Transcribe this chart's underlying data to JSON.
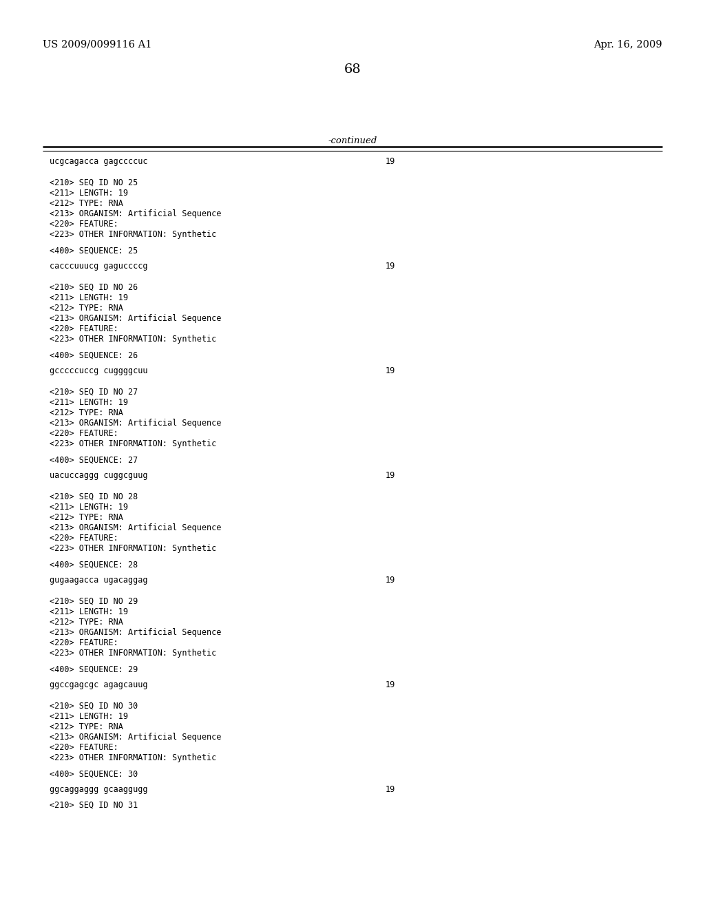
{
  "header_left": "US 2009/0099116 A1",
  "header_right": "Apr. 16, 2009",
  "page_number": "68",
  "continued_label": "-continued",
  "background_color": "#ffffff",
  "text_color": "#000000",
  "line_color": "#000000",
  "header_fontsize": 10.5,
  "body_fontsize": 9.5,
  "mono_fontsize": 8.5,
  "page_num_fontsize": 14,
  "lines": [
    {
      "text": "ucgcagacca gagccccuc",
      "type": "sequence",
      "right_num": "19"
    },
    {
      "text": "",
      "type": "blank"
    },
    {
      "text": "",
      "type": "blank"
    },
    {
      "text": "<210> SEQ ID NO 25",
      "type": "body"
    },
    {
      "text": "<211> LENGTH: 19",
      "type": "body"
    },
    {
      "text": "<212> TYPE: RNA",
      "type": "body"
    },
    {
      "text": "<213> ORGANISM: Artificial Sequence",
      "type": "body"
    },
    {
      "text": "<220> FEATURE:",
      "type": "body"
    },
    {
      "text": "<223> OTHER INFORMATION: Synthetic",
      "type": "body"
    },
    {
      "text": "",
      "type": "blank"
    },
    {
      "text": "<400> SEQUENCE: 25",
      "type": "body"
    },
    {
      "text": "",
      "type": "blank"
    },
    {
      "text": "cacccuuucg gaguccccg",
      "type": "sequence",
      "right_num": "19"
    },
    {
      "text": "",
      "type": "blank"
    },
    {
      "text": "",
      "type": "blank"
    },
    {
      "text": "<210> SEQ ID NO 26",
      "type": "body"
    },
    {
      "text": "<211> LENGTH: 19",
      "type": "body"
    },
    {
      "text": "<212> TYPE: RNA",
      "type": "body"
    },
    {
      "text": "<213> ORGANISM: Artificial Sequence",
      "type": "body"
    },
    {
      "text": "<220> FEATURE:",
      "type": "body"
    },
    {
      "text": "<223> OTHER INFORMATION: Synthetic",
      "type": "body"
    },
    {
      "text": "",
      "type": "blank"
    },
    {
      "text": "<400> SEQUENCE: 26",
      "type": "body"
    },
    {
      "text": "",
      "type": "blank"
    },
    {
      "text": "gcccccuccg cuggggcuu",
      "type": "sequence",
      "right_num": "19"
    },
    {
      "text": "",
      "type": "blank"
    },
    {
      "text": "",
      "type": "blank"
    },
    {
      "text": "<210> SEQ ID NO 27",
      "type": "body"
    },
    {
      "text": "<211> LENGTH: 19",
      "type": "body"
    },
    {
      "text": "<212> TYPE: RNA",
      "type": "body"
    },
    {
      "text": "<213> ORGANISM: Artificial Sequence",
      "type": "body"
    },
    {
      "text": "<220> FEATURE:",
      "type": "body"
    },
    {
      "text": "<223> OTHER INFORMATION: Synthetic",
      "type": "body"
    },
    {
      "text": "",
      "type": "blank"
    },
    {
      "text": "<400> SEQUENCE: 27",
      "type": "body"
    },
    {
      "text": "",
      "type": "blank"
    },
    {
      "text": "uacuccaggg cuggcguug",
      "type": "sequence",
      "right_num": "19"
    },
    {
      "text": "",
      "type": "blank"
    },
    {
      "text": "",
      "type": "blank"
    },
    {
      "text": "<210> SEQ ID NO 28",
      "type": "body"
    },
    {
      "text": "<211> LENGTH: 19",
      "type": "body"
    },
    {
      "text": "<212> TYPE: RNA",
      "type": "body"
    },
    {
      "text": "<213> ORGANISM: Artificial Sequence",
      "type": "body"
    },
    {
      "text": "<220> FEATURE:",
      "type": "body"
    },
    {
      "text": "<223> OTHER INFORMATION: Synthetic",
      "type": "body"
    },
    {
      "text": "",
      "type": "blank"
    },
    {
      "text": "<400> SEQUENCE: 28",
      "type": "body"
    },
    {
      "text": "",
      "type": "blank"
    },
    {
      "text": "gugaagacca ugacaggag",
      "type": "sequence",
      "right_num": "19"
    },
    {
      "text": "",
      "type": "blank"
    },
    {
      "text": "",
      "type": "blank"
    },
    {
      "text": "<210> SEQ ID NO 29",
      "type": "body"
    },
    {
      "text": "<211> LENGTH: 19",
      "type": "body"
    },
    {
      "text": "<212> TYPE: RNA",
      "type": "body"
    },
    {
      "text": "<213> ORGANISM: Artificial Sequence",
      "type": "body"
    },
    {
      "text": "<220> FEATURE:",
      "type": "body"
    },
    {
      "text": "<223> OTHER INFORMATION: Synthetic",
      "type": "body"
    },
    {
      "text": "",
      "type": "blank"
    },
    {
      "text": "<400> SEQUENCE: 29",
      "type": "body"
    },
    {
      "text": "",
      "type": "blank"
    },
    {
      "text": "ggccgagcgc agagcauug",
      "type": "sequence",
      "right_num": "19"
    },
    {
      "text": "",
      "type": "blank"
    },
    {
      "text": "",
      "type": "blank"
    },
    {
      "text": "<210> SEQ ID NO 30",
      "type": "body"
    },
    {
      "text": "<211> LENGTH: 19",
      "type": "body"
    },
    {
      "text": "<212> TYPE: RNA",
      "type": "body"
    },
    {
      "text": "<213> ORGANISM: Artificial Sequence",
      "type": "body"
    },
    {
      "text": "<220> FEATURE:",
      "type": "body"
    },
    {
      "text": "<223> OTHER INFORMATION: Synthetic",
      "type": "body"
    },
    {
      "text": "",
      "type": "blank"
    },
    {
      "text": "<400> SEQUENCE: 30",
      "type": "body"
    },
    {
      "text": "",
      "type": "blank"
    },
    {
      "text": "ggcaggaggg gcaaggugg",
      "type": "sequence",
      "right_num": "19"
    },
    {
      "text": "",
      "type": "blank"
    },
    {
      "text": "<210> SEQ ID NO 31",
      "type": "body"
    }
  ]
}
